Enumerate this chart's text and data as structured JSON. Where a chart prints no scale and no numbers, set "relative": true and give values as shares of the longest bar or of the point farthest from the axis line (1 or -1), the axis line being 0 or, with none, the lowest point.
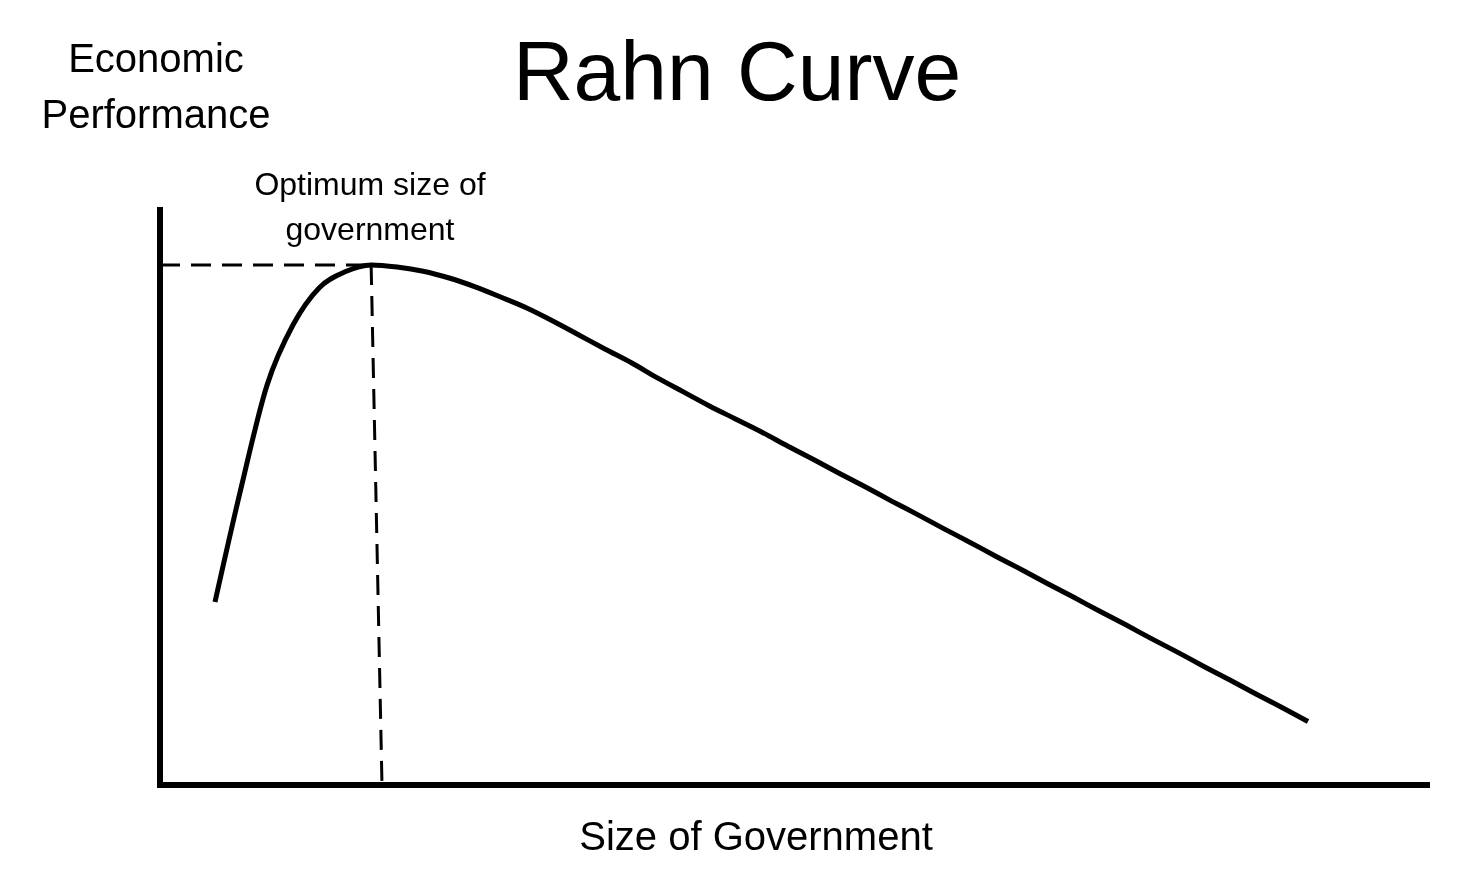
{
  "chart_data": {
    "type": "line",
    "title": "Rahn Curve",
    "xlabel": "Size of Government",
    "ylabel": "Economic Performance",
    "relative": true,
    "color": "#000000",
    "line_style": "solid",
    "marker": "none",
    "categories": [
      null,
      null,
      null,
      null,
      null,
      null,
      null,
      null,
      null,
      null,
      null,
      null,
      null,
      null,
      null,
      null,
      null,
      null,
      null,
      null,
      null,
      null,
      null,
      null,
      null,
      null,
      null,
      null,
      null,
      null,
      null,
      null,
      null,
      null,
      null,
      null,
      null,
      null,
      null,
      null,
      null,
      null,
      null
    ],
    "values": [
      0.352,
      0.571,
      0.769,
      0.885,
      0.956,
      0.987,
      1.0,
      0.996,
      0.988,
      0.975,
      0.958,
      0.938,
      0.917,
      0.892,
      0.865,
      0.838,
      0.812,
      0.783,
      0.756,
      0.729,
      0.704,
      0.679,
      0.652,
      0.626,
      0.599,
      0.573,
      0.546,
      0.52,
      0.493,
      0.467,
      0.44,
      0.414,
      0.387,
      0.361,
      0.334,
      0.308,
      0.281,
      0.255,
      0.228,
      0.202,
      0.175,
      0.149,
      0.122
    ],
    "ref_lines": [
      {
        "axis": "y",
        "value": 1,
        "line_style": "dashed"
      }
    ],
    "annotations": [
      {
        "text": "Optimum size of government",
        "y": 1
      }
    ]
  }
}
